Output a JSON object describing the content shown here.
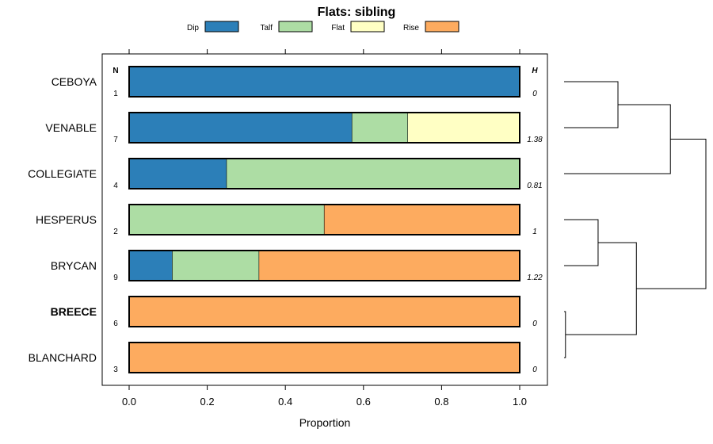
{
  "chart_data": {
    "type": "bar",
    "orientation": "horizontal",
    "stacked": true,
    "title": "Flats: sibling",
    "xlabel": "Proportion",
    "ylabel": "",
    "xlim": [
      0,
      1
    ],
    "x_ticks": [
      "0.0",
      "0.2",
      "0.4",
      "0.6",
      "0.8",
      "1.0"
    ],
    "x_tick_values": [
      0,
      0.2,
      0.4,
      0.6,
      0.8,
      1.0
    ],
    "legend": [
      {
        "name": "Dip",
        "color": "#2c7fb8"
      },
      {
        "name": "Talf",
        "color": "#addda4"
      },
      {
        "name": "Flat",
        "color": "#ffffc4"
      },
      {
        "name": "Rise",
        "color": "#fdab5f"
      }
    ],
    "legend_position": "top",
    "n_header": "N",
    "h_header": "H",
    "categories": [
      "CEBOYA",
      "VENABLE",
      "COLLEGIATE",
      "HESPERUS",
      "BRYCAN",
      "BREECE",
      "BLANCHARD"
    ],
    "bold_categories": [
      "BREECE"
    ],
    "n_values": [
      "1",
      "7",
      "4",
      "2",
      "9",
      "6",
      "3"
    ],
    "h_values": [
      "0",
      "1.38",
      "0.81",
      "1",
      "1.22",
      "0",
      "0"
    ],
    "series": [
      {
        "name": "Dip",
        "values": [
          1.0,
          0.571,
          0.25,
          0.0,
          0.111,
          0.0,
          0.0
        ]
      },
      {
        "name": "Talf",
        "values": [
          0.0,
          0.143,
          0.75,
          0.5,
          0.222,
          0.0,
          0.0
        ]
      },
      {
        "name": "Flat",
        "values": [
          0.0,
          0.286,
          0.0,
          0.0,
          0.0,
          0.0,
          0.0
        ]
      },
      {
        "name": "Rise",
        "values": [
          0.0,
          0.0,
          0.0,
          0.5,
          0.667,
          1.0,
          1.0
        ]
      }
    ],
    "dendrogram": {
      "leaves": [
        "CEBOYA",
        "VENABLE",
        "COLLEGIATE",
        "HESPERUS",
        "BRYCAN",
        "BREECE",
        "BLANCHARD"
      ],
      "merges": [
        {
          "left": "BREECE",
          "right": "BLANCHARD",
          "height": 0.01
        },
        {
          "left": "HESPERUS",
          "right": "BRYCAN",
          "height": 0.24
        },
        {
          "left": "CEBOYA",
          "right": "VENABLE",
          "height": 0.38
        },
        {
          "left": "CEBOYA+VENABLE",
          "right": "COLLEGIATE",
          "height": 0.75
        },
        {
          "left": "HESPERUS+BRYCAN",
          "right": "BREECE+BLANCHARD",
          "height": 0.51
        },
        {
          "left": "TOP",
          "right": "BOTTOM",
          "height": 1.0
        }
      ]
    }
  }
}
